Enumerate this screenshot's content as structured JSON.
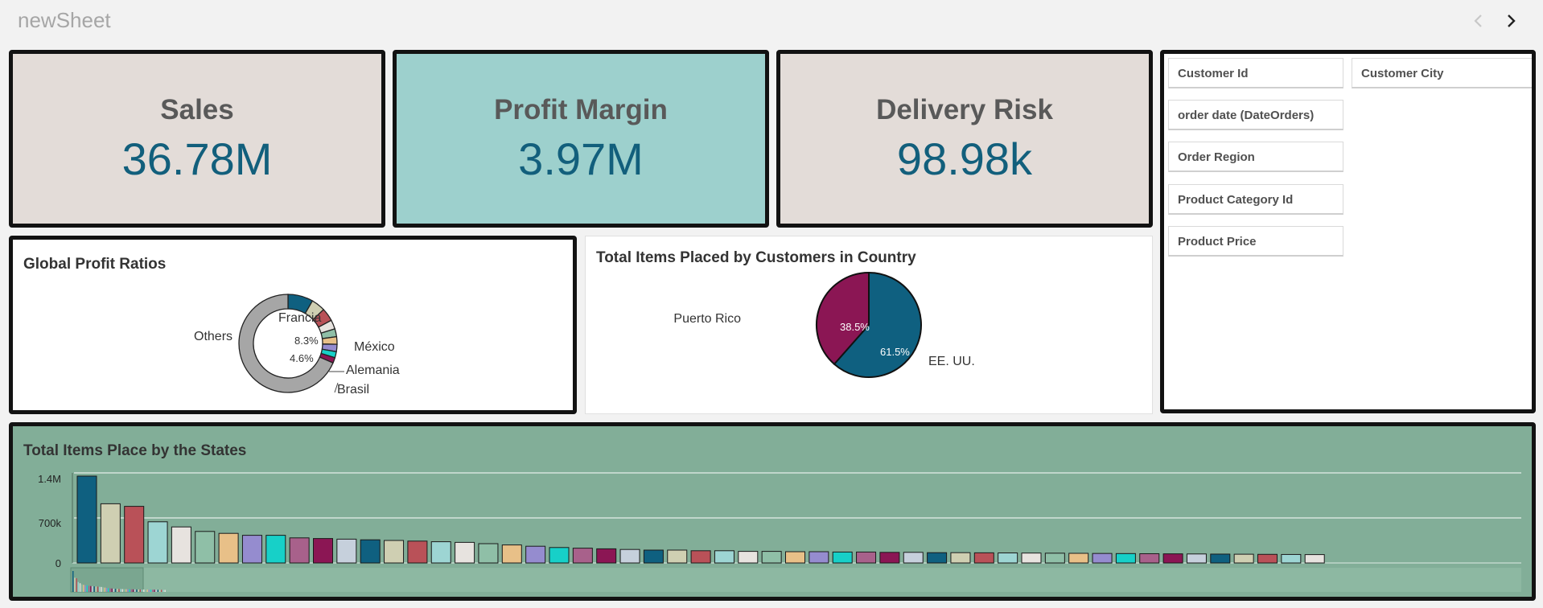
{
  "sheet": {
    "title": "newSheet"
  },
  "icons": {
    "prev": "chevron-left-icon",
    "next": "chevron-right-icon"
  },
  "kpis": [
    {
      "label": "Sales",
      "value": "36.78M",
      "background": "#e3dcd8"
    },
    {
      "label": "Profit Margin",
      "value": "3.97M",
      "background": "#9dd0cd"
    },
    {
      "label": "Delivery Risk",
      "value": "98.98k",
      "background": "#e3dcd8"
    }
  ],
  "filters": {
    "customer_id": "Customer Id",
    "customer_city": "Customer City",
    "order_date": "order date (DateOrders)",
    "order_region": "Order Region",
    "product_category_id": "Product Category Id",
    "product_price": "Product Price"
  },
  "colors": {
    "accent": "#125f7c",
    "bar_panel_bg": "#82ae98",
    "palette": [
      "#0f6080",
      "#cfcfb2",
      "#b95158",
      "#9dd5d3",
      "#e7e3df",
      "#8fbfa7",
      "#e8c088",
      "#958ccf",
      "#17d0c8",
      "#a8618b",
      "#8b1654",
      "#c6d0dc"
    ]
  },
  "charts": {
    "global_profit": {
      "title": "Global Profit Ratios",
      "chart_data": {
        "type": "pie",
        "title": "Global Profit Ratios",
        "style": "donut",
        "labeled_slices": [
          "Francia",
          "México",
          "Alemania",
          "Brasil",
          "Others"
        ],
        "data_labels": [
          "8.3%",
          "4.6%"
        ],
        "slices": [
          {
            "label": "Francia",
            "value": 8.3,
            "color": "#0f6080"
          },
          {
            "label": "México",
            "value": 4.6,
            "color": "#cfcfb2"
          },
          {
            "label": "",
            "value": 4.3,
            "color": "#b95158"
          },
          {
            "label": "",
            "value": 3.0,
            "color": "#e7e3df"
          },
          {
            "label": "Alemania",
            "value": 2.6,
            "color": "#8fbfa7"
          },
          {
            "label": "",
            "value": 2.5,
            "color": "#e8c088"
          },
          {
            "label": "Brasil",
            "value": 2.4,
            "color": "#958ccf"
          },
          {
            "label": "",
            "value": 2.0,
            "color": "#17d0c8"
          },
          {
            "label": "",
            "value": 1.8,
            "color": "#8b1654"
          },
          {
            "label": "Others",
            "value": 68.5,
            "color": "#a6a6a6"
          }
        ]
      }
    },
    "country_items": {
      "title": "Total Items Placed by Customers in Country",
      "chart_data": {
        "type": "pie",
        "title": "Total Items Placed by Customers in Country",
        "slices": [
          {
            "label": "EE. UU.",
            "value": 61.5,
            "display": "61.5%",
            "color": "#0f6080"
          },
          {
            "label": "Puerto Rico",
            "value": 38.5,
            "display": "38.5%",
            "color": "#8b1654"
          }
        ]
      }
    },
    "state_items": {
      "title": "Total Items Place by the States",
      "chart_data": {
        "type": "bar",
        "title": "Total Items Place by the States",
        "y_ticks": [
          "1.4M",
          "700k",
          "0"
        ],
        "ylim": [
          0,
          1400000
        ],
        "grid": true,
        "values": [
          1350000,
          920000,
          880000,
          640000,
          560000,
          490000,
          460000,
          430000,
          430000,
          390000,
          380000,
          370000,
          360000,
          350000,
          340000,
          330000,
          320000,
          300000,
          280000,
          260000,
          240000,
          230000,
          220000,
          210000,
          200000,
          200000,
          190000,
          190000,
          180000,
          180000,
          175000,
          175000,
          170000,
          170000,
          165000,
          165000,
          160000,
          160000,
          158000,
          156000,
          154000,
          152000,
          150000,
          148000,
          146000,
          144000,
          142000,
          140000,
          138000,
          136000,
          134000,
          132000,
          130000
        ]
      }
    }
  }
}
